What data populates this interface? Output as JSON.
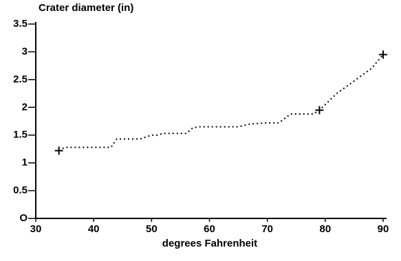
{
  "chart_data": {
    "type": "line",
    "title": "Crater diameter (in)",
    "xlabel": "degrees Fahrenheit",
    "x": [
      34,
      35,
      43,
      44,
      48,
      50,
      51,
      52,
      56,
      57,
      58,
      65,
      67,
      70,
      72,
      73,
      74,
      78,
      79,
      80,
      82,
      84,
      86,
      88,
      90
    ],
    "values": [
      1.22,
      1.28,
      1.28,
      1.43,
      1.43,
      1.5,
      1.5,
      1.53,
      1.53,
      1.62,
      1.65,
      1.65,
      1.7,
      1.72,
      1.72,
      1.8,
      1.88,
      1.88,
      1.95,
      2.05,
      2.25,
      2.4,
      2.55,
      2.7,
      2.95
    ],
    "marker_x": [
      34,
      79,
      90
    ],
    "marker_values": [
      1.22,
      1.95,
      2.95
    ],
    "color": "#000000",
    "xlim": [
      30,
      90
    ],
    "xticks": [
      30,
      40,
      50,
      60,
      70,
      80,
      90
    ],
    "ylim": [
      0,
      3.5
    ],
    "yticks": [
      {
        "value": 0,
        "label": "O"
      },
      0.5,
      1,
      1.5,
      2,
      2.5,
      3,
      3.5
    ]
  }
}
